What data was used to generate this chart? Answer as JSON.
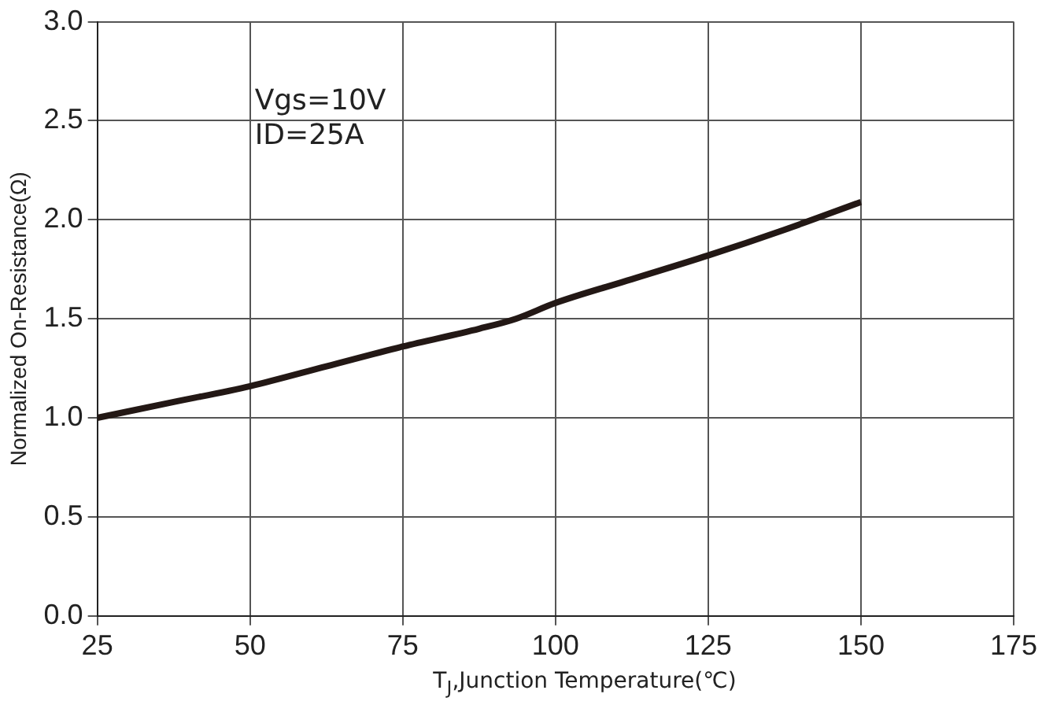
{
  "chart_data": {
    "type": "line",
    "xlabel": "T$_{J}$,Junction Temperature(℃)",
    "ylabel": "Normalized On-Resistance(Ω)",
    "annotations": [
      "Vgs=10V",
      "ID=25A"
    ],
    "series": [
      {
        "color": "#231815",
        "x": [
          25,
          37.5,
          50,
          62.5,
          75,
          87.5,
          93.5,
          100,
          112.5,
          125,
          137.5,
          150
        ],
        "values": [
          1.0,
          1.08,
          1.16,
          1.26,
          1.36,
          1.45,
          1.5,
          1.58,
          1.7,
          1.82,
          1.95,
          2.09
        ]
      }
    ],
    "xlim": [
      25,
      175
    ],
    "xticks": [
      25,
      50,
      75,
      100,
      125,
      150,
      175
    ],
    "ylim": [
      0,
      3
    ],
    "yticks": [
      {
        "value": 0,
        "label": "0.0"
      },
      {
        "value": 0.5,
        "label": "0.5"
      },
      {
        "value": 1,
        "label": "1.0"
      },
      {
        "value": 1.5,
        "label": "1.5"
      },
      {
        "value": 2,
        "label": "2.0"
      },
      {
        "value": 2.5,
        "label": "2.5"
      },
      {
        "value": 3,
        "label": "3.0"
      }
    ],
    "grid": true,
    "legend": false,
    "marker": "none",
    "line_style": "solid"
  }
}
